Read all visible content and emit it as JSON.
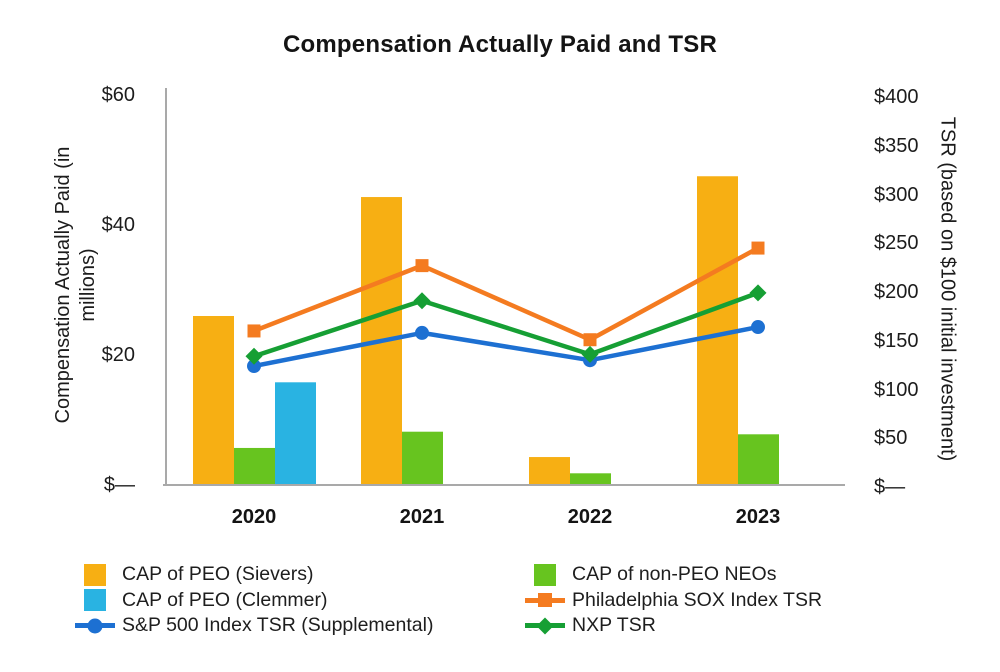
{
  "title": "Compensation Actually Paid and TSR",
  "chart_data": {
    "type": "combo-bar-line",
    "title": "Compensation Actually Paid and TSR",
    "categories": [
      "2020",
      "2021",
      "2022",
      "2023"
    ],
    "bar_series": [
      {
        "key": "cap_peo_sievers",
        "name": "CAP of PEO (Sievers)",
        "color": "#F7AF13",
        "axis": "left",
        "values": [
          26.0,
          44.3,
          4.3,
          47.5
        ]
      },
      {
        "key": "cap_non_peo_neos",
        "name": "CAP of non-PEO NEOs",
        "color": "#67C41F",
        "axis": "left",
        "values": [
          5.7,
          8.2,
          1.8,
          7.8
        ]
      },
      {
        "key": "cap_peo_clemmer",
        "name": "CAP of PEO (Clemmer)",
        "color": "#29B3E2",
        "axis": "left",
        "values": [
          15.8,
          null,
          null,
          null
        ]
      }
    ],
    "line_series": [
      {
        "key": "sp500_index_tsr",
        "name": "S&P 500 Index TSR (Supplemental)",
        "color": "#1D70D2",
        "marker": "circle",
        "axis": "right",
        "values": [
          122,
          156,
          128,
          162
        ]
      },
      {
        "key": "philadelphia_sox_index_tsr",
        "name": "Philadelphia SOX Index TSR",
        "color": "#F47B20",
        "marker": "square",
        "axis": "right",
        "values": [
          158,
          225,
          149,
          243
        ]
      },
      {
        "key": "nxp_tsr",
        "name": "NXP TSR",
        "color": "#169F34",
        "marker": "diamond",
        "axis": "right",
        "values": [
          132,
          189,
          134,
          197
        ]
      }
    ],
    "left_axis": {
      "title_lines": [
        "Compensation Actually Paid (in",
        "millions)"
      ],
      "tick_labels": [
        "$60",
        "$40",
        "$20",
        "$—"
      ],
      "tick_values": [
        60,
        40,
        20,
        0
      ],
      "range": [
        0,
        60
      ]
    },
    "right_axis": {
      "title": "TSR (based on $100 initial investment)",
      "tick_labels": [
        "$400",
        "$350",
        "$300",
        "$250",
        "$200",
        "$150",
        "$100",
        "$50",
        "$—"
      ],
      "tick_values": [
        400,
        350,
        300,
        250,
        200,
        150,
        100,
        50,
        0
      ],
      "range": [
        0,
        400
      ]
    },
    "grid": "off",
    "axis_color": "#A9A9A9",
    "legend_position": "bottom-two-columns",
    "legend": {
      "columns": [
        {
          "items": [
            {
              "key": "cap_peo_sievers"
            },
            {
              "key": "cap_peo_clemmer"
            },
            {
              "key": "sp500_index_tsr"
            }
          ]
        },
        {
          "items": [
            {
              "key": "cap_non_peo_neos"
            },
            {
              "key": "philadelphia_sox_index_tsr"
            },
            {
              "key": "nxp_tsr"
            }
          ]
        }
      ]
    }
  }
}
